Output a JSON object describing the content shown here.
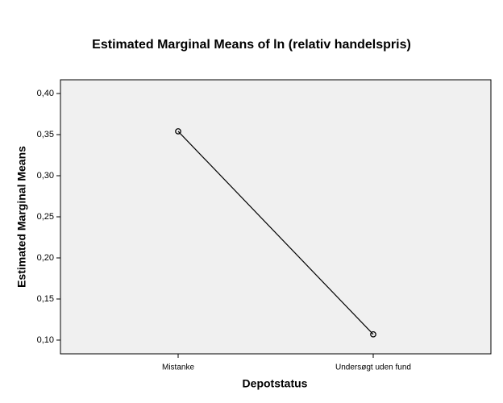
{
  "chart_data": {
    "type": "line",
    "title": "Estimated Marginal Means of ln (relativ handelspris)",
    "x_label": "Depotstatus",
    "y_label": "Estimated Marginal Means",
    "categories": [
      "Mistanke",
      "Undersøgt uden fund"
    ],
    "series": [
      {
        "color": "#000000",
        "values": [
          0.354,
          0.107
        ]
      }
    ],
    "ylim": [
      0.0833,
      0.4167
    ],
    "yticks": [
      {
        "value": 0.1,
        "label": "0,10"
      },
      {
        "value": 0.15,
        "label": "0,15"
      },
      {
        "value": 0.2,
        "label": "0,20"
      },
      {
        "value": 0.25,
        "label": "0,25"
      },
      {
        "value": 0.3,
        "label": "0,30"
      },
      {
        "value": 0.35,
        "label": "0,35"
      },
      {
        "value": 0.4,
        "label": "0,40"
      }
    ]
  }
}
